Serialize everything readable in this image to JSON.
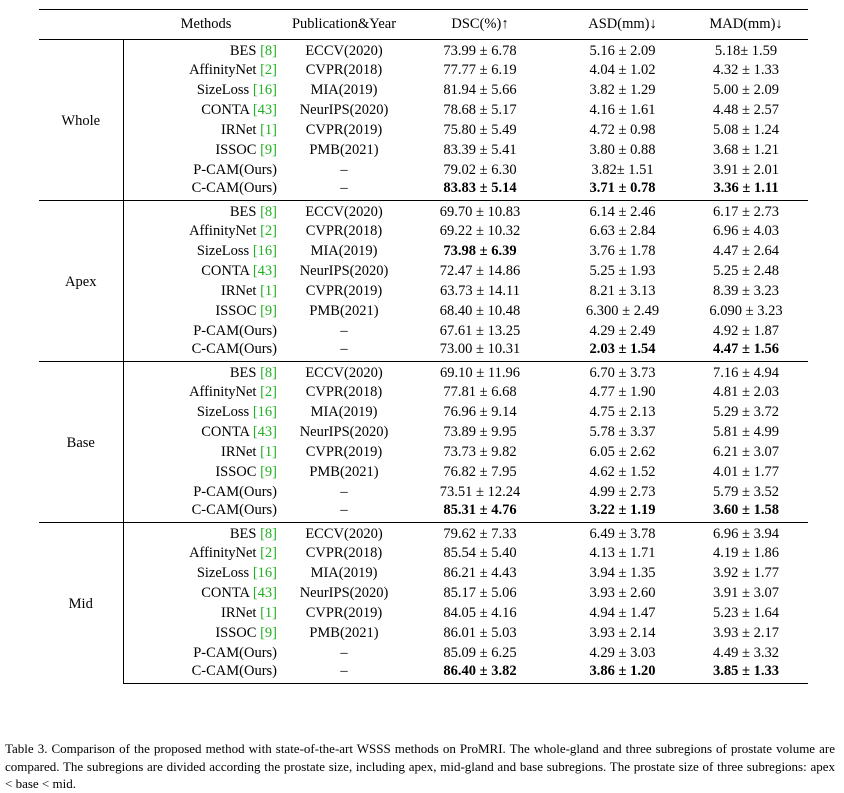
{
  "table": {
    "headers": {
      "group": "",
      "method": "Methods",
      "publication": "Publication&Year",
      "dsc": "DSC(%)↑",
      "asd": "ASD(mm)↓",
      "mad": "MAD(mm)↓"
    },
    "groups": [
      {
        "name": "Whole",
        "rows": [
          {
            "method": "BES",
            "ref": "[8]",
            "pub": "ECCV(2020)",
            "dsc": "73.99 ± 6.78",
            "asd": "5.16 ± 2.09",
            "mad": "5.18± 1.59"
          },
          {
            "method": "AffinityNet",
            "ref": "[2]",
            "pub": "CVPR(2018)",
            "dsc": "77.77 ± 6.19",
            "asd": "4.04 ± 1.02",
            "mad": "4.32 ± 1.33"
          },
          {
            "method": "SizeLoss",
            "ref": "[16]",
            "pub": "MIA(2019)",
            "dsc": "81.94 ± 5.66",
            "asd": "3.82 ± 1.29",
            "mad": "5.00 ± 2.09"
          },
          {
            "method": "CONTA",
            "ref": "[43]",
            "pub": "NeurIPS(2020)",
            "dsc": "78.68 ± 5.17",
            "asd": "4.16 ± 1.61",
            "mad": "4.48 ± 2.57"
          },
          {
            "method": "IRNet",
            "ref": "[1]",
            "pub": "CVPR(2019)",
            "dsc": "75.80 ± 5.49",
            "asd": "4.72 ± 0.98",
            "mad": "5.08 ± 1.24"
          },
          {
            "method": "ISSOC",
            "ref": "[9]",
            "pub": "PMB(2021)",
            "dsc": "83.39 ± 5.41",
            "asd": "3.80 ± 0.88",
            "mad": "3.68 ± 1.21"
          },
          {
            "method": "P-CAM(Ours)",
            "ref": "",
            "pub": "–",
            "dsc": "79.02 ± 6.30",
            "asd": "3.82± 1.51",
            "mad": "3.91 ± 2.01"
          },
          {
            "method": "C-CAM(Ours)",
            "ref": "",
            "pub": "–",
            "dsc": "83.83 ± 5.14",
            "asd": "3.71 ± 0.78",
            "mad": "3.36 ± 1.11",
            "bold": [
              "dsc",
              "asd",
              "mad"
            ]
          }
        ]
      },
      {
        "name": "Apex",
        "rows": [
          {
            "method": "BES",
            "ref": "[8]",
            "pub": "ECCV(2020)",
            "dsc": "69.70 ± 10.83",
            "asd": "6.14 ± 2.46",
            "mad": "6.17 ± 2.73"
          },
          {
            "method": "AffinityNet",
            "ref": "[2]",
            "pub": "CVPR(2018)",
            "dsc": "69.22 ± 10.32",
            "asd": "6.63 ± 2.84",
            "mad": "6.96 ± 4.03"
          },
          {
            "method": "SizeLoss",
            "ref": "[16]",
            "pub": "MIA(2019)",
            "dsc": "73.98 ± 6.39",
            "asd": "3.76 ± 1.78",
            "mad": "4.47 ± 2.64",
            "bold": [
              "dsc"
            ]
          },
          {
            "method": "CONTA",
            "ref": "[43]",
            "pub": "NeurIPS(2020)",
            "dsc": "72.47 ± 14.86",
            "asd": "5.25 ± 1.93",
            "mad": "5.25 ± 2.48"
          },
          {
            "method": "IRNet",
            "ref": "[1]",
            "pub": "CVPR(2019)",
            "dsc": "63.73 ± 14.11",
            "asd": "8.21 ± 3.13",
            "mad": "8.39 ± 3.23"
          },
          {
            "method": "ISSOC",
            "ref": "[9]",
            "pub": "PMB(2021)",
            "dsc": "68.40 ± 10.48",
            "asd": "6.300 ± 2.49",
            "mad": "6.090 ± 3.23"
          },
          {
            "method": "P-CAM(Ours)",
            "ref": "",
            "pub": "–",
            "dsc": "67.61 ± 13.25",
            "asd": "4.29 ± 2.49",
            "mad": "4.92 ± 1.87"
          },
          {
            "method": "C-CAM(Ours)",
            "ref": "",
            "pub": "–",
            "dsc": "73.00 ± 10.31",
            "asd": "2.03 ± 1.54",
            "mad": "4.47 ± 1.56",
            "bold": [
              "asd",
              "mad"
            ]
          }
        ]
      },
      {
        "name": "Base",
        "rows": [
          {
            "method": "BES",
            "ref": "[8]",
            "pub": "ECCV(2020)",
            "dsc": "69.10 ± 11.96",
            "asd": "6.70 ± 3.73",
            "mad": "7.16 ± 4.94"
          },
          {
            "method": "AffinityNet",
            "ref": "[2]",
            "pub": "CVPR(2018)",
            "dsc": "77.81 ± 6.68",
            "asd": "4.77 ± 1.90",
            "mad": "4.81 ± 2.03"
          },
          {
            "method": "SizeLoss",
            "ref": "[16]",
            "pub": "MIA(2019)",
            "dsc": "76.96 ± 9.14",
            "asd": "4.75 ± 2.13",
            "mad": "5.29 ± 3.72"
          },
          {
            "method": "CONTA",
            "ref": "[43]",
            "pub": "NeurIPS(2020)",
            "dsc": "73.89 ± 9.95",
            "asd": "5.78 ± 3.37",
            "mad": "5.81 ± 4.99"
          },
          {
            "method": "IRNet",
            "ref": "[1]",
            "pub": "CVPR(2019)",
            "dsc": "73.73 ± 9.82",
            "asd": "6.05 ± 2.62",
            "mad": "6.21 ± 3.07"
          },
          {
            "method": "ISSOC",
            "ref": "[9]",
            "pub": "PMB(2021)",
            "dsc": "76.82 ± 7.95",
            "asd": "4.62 ± 1.52",
            "mad": "4.01 ± 1.77"
          },
          {
            "method": "P-CAM(Ours)",
            "ref": "",
            "pub": "–",
            "dsc": "73.51 ± 12.24",
            "asd": "4.99 ± 2.73",
            "mad": "5.79 ± 3.52"
          },
          {
            "method": "C-CAM(Ours)",
            "ref": "",
            "pub": "–",
            "dsc": "85.31 ± 4.76",
            "asd": "3.22 ± 1.19",
            "mad": "3.60 ± 1.58",
            "bold": [
              "dsc",
              "asd",
              "mad"
            ]
          }
        ]
      },
      {
        "name": "Mid",
        "rows": [
          {
            "method": "BES",
            "ref": "[8]",
            "pub": "ECCV(2020)",
            "dsc": "79.62 ± 7.33",
            "asd": "6.49 ± 3.78",
            "mad": "6.96 ± 3.94"
          },
          {
            "method": "AffinityNet",
            "ref": "[2]",
            "pub": "CVPR(2018)",
            "dsc": "85.54 ± 5.40",
            "asd": "4.13 ± 1.71",
            "mad": "4.19 ± 1.86"
          },
          {
            "method": "SizeLoss",
            "ref": "[16]",
            "pub": "MIA(2019)",
            "dsc": "86.21 ± 4.43",
            "asd": "3.94 ± 1.35",
            "mad": "3.92 ± 1.77"
          },
          {
            "method": "CONTA",
            "ref": "[43]",
            "pub": "NeurIPS(2020)",
            "dsc": "85.17 ± 5.06",
            "asd": "3.93 ± 2.60",
            "mad": "3.91 ± 3.07"
          },
          {
            "method": "IRNet",
            "ref": "[1]",
            "pub": "CVPR(2019)",
            "dsc": "84.05 ± 4.16",
            "asd": "4.94 ± 1.47",
            "mad": "5.23 ± 1.64"
          },
          {
            "method": "ISSOC",
            "ref": "[9]",
            "pub": "PMB(2021)",
            "dsc": "86.01 ± 5.03",
            "asd": "3.93 ± 2.14",
            "mad": "3.93 ± 2.17"
          },
          {
            "method": "P-CAM(Ours)",
            "ref": "",
            "pub": "–",
            "dsc": "85.09 ± 6.25",
            "asd": "4.29 ± 3.03",
            "mad": "4.49 ± 3.32"
          },
          {
            "method": "C-CAM(Ours)",
            "ref": "",
            "pub": "–",
            "dsc": "86.40 ± 3.82",
            "asd": "3.86 ± 1.20",
            "mad": "3.85 ± 1.33",
            "bold": [
              "dsc",
              "asd",
              "mad"
            ]
          }
        ]
      }
    ]
  },
  "caption": "Table 3. Comparison of the proposed method with state-of-the-art WSSS methods on ProMRI. The whole-gland and three subregions of prostate volume are compared. The subregions are divided according the prostate size, including apex, mid-gland and base subregions. The prostate size of three subregions: apex < base < mid.",
  "colors": {
    "reference": "#21b021",
    "text": "#000000"
  }
}
